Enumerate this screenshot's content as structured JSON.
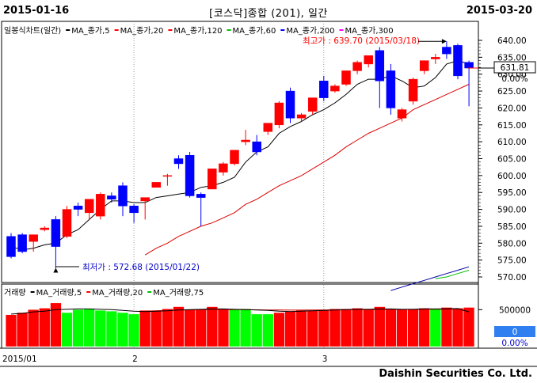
{
  "header": {
    "start_date": "2015-01-16",
    "end_date": "2015-03-20",
    "title": "[코스닥]종합 (201), 일간"
  },
  "footer": {
    "brand": "Daishin Securities Co. Ltd."
  },
  "price_legend": [
    {
      "label": "일봉식차트(일간)",
      "color": "#000000",
      "marker": false
    },
    {
      "label": "MA_종가,5",
      "color": "#000000",
      "marker": true
    },
    {
      "label": "MA_종가,20",
      "color": "#ff0000",
      "marker": true
    },
    {
      "label": "MA_종가,120",
      "color": "#ff0000",
      "marker": true
    },
    {
      "label": "MA_종가,60",
      "color": "#00c000",
      "marker": true
    },
    {
      "label": "MA_종가,200",
      "color": "#0000ff",
      "marker": true
    },
    {
      "label": "MA_종가,300",
      "color": "#ff00ff",
      "marker": true
    }
  ],
  "volume_legend": [
    {
      "label": "거래량",
      "color": "#ff0000"
    },
    {
      "label": "MA_거래량,5",
      "color": "#000000"
    },
    {
      "label": "MA_거래량,20",
      "color": "#ff0000"
    },
    {
      "label": "MA_거래량,75",
      "color": "#00c000"
    }
  ],
  "annotations": {
    "high": "최고가 : 639.70 (2015/03/18)",
    "low": "최저가 : 572.68 (2015/01/22)"
  },
  "current": {
    "price": "631.81",
    "change": "0.00%",
    "vol_value": "0",
    "vol_change": "0.00%"
  },
  "colors": {
    "up": "#ff0000",
    "down": "#0000ff",
    "volume_up": "#ff0000",
    "volume_other": "#00ff00"
  },
  "chart_data": [
    {
      "type": "candlestick",
      "y_ticks": [
        570,
        575,
        580,
        585,
        590,
        595,
        600,
        605,
        610,
        615,
        620,
        625,
        630,
        635,
        640
      ],
      "ylim": [
        568,
        642
      ],
      "x_labels": [
        {
          "label": "2015/01",
          "index": 0
        },
        {
          "label": "2",
          "index": 11
        },
        {
          "label": "3",
          "index": 28
        }
      ],
      "candles": [
        {
          "o": 582.0,
          "h": 583.0,
          "c": 576.0,
          "l": 575.5
        },
        {
          "o": 582.5,
          "h": 583.0,
          "c": 577.5,
          "l": 577.0
        },
        {
          "o": 580.5,
          "h": 582.5,
          "c": 582.5,
          "l": 577.5
        },
        {
          "o": 584.0,
          "h": 585.0,
          "c": 584.5,
          "l": 583.5
        },
        {
          "o": 587.0,
          "h": 588.0,
          "c": 579.0,
          "l": 572.7
        },
        {
          "o": 582.0,
          "h": 591.0,
          "c": 590.0,
          "l": 581.5
        },
        {
          "o": 591.0,
          "h": 592.0,
          "c": 590.0,
          "l": 588.0
        },
        {
          "o": 589.0,
          "h": 593.0,
          "c": 593.0,
          "l": 587.0
        },
        {
          "o": 588.0,
          "h": 595.0,
          "c": 594.5,
          "l": 587.0
        },
        {
          "o": 594.0,
          "h": 595.0,
          "c": 593.0,
          "l": 592.0
        },
        {
          "o": 597.0,
          "h": 598.0,
          "c": 591.0,
          "l": 588.0
        },
        {
          "o": 591.0,
          "h": 591.5,
          "c": 589.0,
          "l": 586.0
        },
        {
          "o": 592.5,
          "h": 593.5,
          "c": 593.5,
          "l": 587.0
        },
        {
          "o": 596.5,
          "h": 598.0,
          "c": 598.0,
          "l": 596.5
        },
        {
          "o": 600.0,
          "h": 600.5,
          "c": 600.0,
          "l": 597.0
        },
        {
          "o": 605.0,
          "h": 606.0,
          "c": 603.5,
          "l": 602.0
        },
        {
          "o": 606.0,
          "h": 607.0,
          "c": 594.0,
          "l": 593.5
        },
        {
          "o": 594.5,
          "h": 595.0,
          "c": 593.5,
          "l": 585.0
        },
        {
          "o": 596.0,
          "h": 602.0,
          "c": 602.0,
          "l": 596.0
        },
        {
          "o": 601.0,
          "h": 604.0,
          "c": 603.5,
          "l": 600.0
        },
        {
          "o": 603.5,
          "h": 607.5,
          "c": 607.5,
          "l": 603.0
        },
        {
          "o": 610.0,
          "h": 613.5,
          "c": 610.5,
          "l": 609.0
        },
        {
          "o": 610.0,
          "h": 612.0,
          "c": 607.0,
          "l": 606.0
        },
        {
          "o": 613.0,
          "h": 615.5,
          "c": 615.5,
          "l": 612.0
        },
        {
          "o": 615.0,
          "h": 622.0,
          "c": 621.5,
          "l": 614.0
        },
        {
          "o": 625.0,
          "h": 626.0,
          "c": 617.0,
          "l": 615.5
        },
        {
          "o": 617.0,
          "h": 618.5,
          "c": 618.0,
          "l": 616.0
        },
        {
          "o": 619.0,
          "h": 623.0,
          "c": 623.0,
          "l": 618.0
        },
        {
          "o": 628.0,
          "h": 629.5,
          "c": 623.0,
          "l": 622.0
        },
        {
          "o": 625.0,
          "h": 627.0,
          "c": 626.5,
          "l": 624.5
        },
        {
          "o": 627.0,
          "h": 631.0,
          "c": 631.0,
          "l": 626.5
        },
        {
          "o": 631.0,
          "h": 634.0,
          "c": 633.5,
          "l": 630.0
        },
        {
          "o": 633.0,
          "h": 635.5,
          "c": 635.5,
          "l": 632.0
        },
        {
          "o": 637.0,
          "h": 638.0,
          "c": 628.0,
          "l": 620.0
        },
        {
          "o": 631.0,
          "h": 633.0,
          "c": 620.0,
          "l": 618.0
        },
        {
          "o": 617.0,
          "h": 620.0,
          "c": 619.5,
          "l": 616.0
        },
        {
          "o": 622.0,
          "h": 629.0,
          "c": 628.5,
          "l": 621.0
        },
        {
          "o": 631.0,
          "h": 634.0,
          "c": 634.0,
          "l": 630.0
        },
        {
          "o": 634.5,
          "h": 636.0,
          "c": 635.0,
          "l": 633.0
        },
        {
          "o": 638.0,
          "h": 639.7,
          "c": 636.0,
          "l": 634.5
        },
        {
          "o": 638.5,
          "h": 639.0,
          "c": 629.5,
          "l": 628.5
        },
        {
          "o": 633.5,
          "h": 634.0,
          "c": 631.81,
          "l": 620.5
        }
      ],
      "ma_5": [
        579.0,
        578.0,
        578.5,
        579.5,
        580.0,
        582.5,
        584.0,
        587.0,
        590.0,
        592.5,
        592.5,
        592.0,
        592.0,
        593.5,
        594.0,
        594.5,
        595.0,
        596.5,
        597.0,
        598.0,
        599.5,
        604.0,
        607.0,
        608.5,
        612.5,
        614.5,
        616.0,
        618.0,
        619.5,
        621.5,
        624.0,
        627.0,
        628.5,
        628.5,
        629.5,
        628.0,
        626.0,
        626.5,
        629.0,
        633.0,
        634.0,
        633.0
      ],
      "ma_20": [
        null,
        null,
        null,
        null,
        null,
        null,
        null,
        null,
        null,
        null,
        null,
        null,
        576.5,
        578.5,
        580.0,
        582.0,
        583.5,
        585.0,
        586.0,
        587.5,
        589.0,
        591.5,
        593.0,
        595.0,
        597.0,
        598.5,
        600.0,
        602.0,
        604.0,
        606.0,
        608.5,
        610.5,
        612.5,
        614.0,
        615.5,
        617.0,
        619.5,
        621.0,
        622.5,
        624.0,
        625.5,
        627.0
      ],
      "ma_120": [
        null,
        null,
        null,
        null,
        null,
        null,
        null,
        null,
        null,
        null,
        null,
        null,
        null,
        null,
        null,
        null,
        null,
        null,
        null,
        null,
        null,
        null,
        null,
        null,
        null,
        null,
        null,
        null,
        null,
        null,
        null,
        null,
        null,
        null,
        566.0,
        567.0,
        568.0,
        569.0,
        570.0,
        571.0,
        572.0,
        573.0
      ],
      "ma_60": [
        null,
        null,
        null,
        null,
        null,
        null,
        null,
        null,
        null,
        null,
        null,
        null,
        null,
        null,
        null,
        null,
        null,
        null,
        null,
        null,
        null,
        null,
        null,
        null,
        null,
        null,
        null,
        null,
        null,
        null,
        null,
        null,
        null,
        null,
        null,
        null,
        null,
        null,
        569.5,
        570.0,
        571.0,
        572.0
      ],
      "volume_axis": {
        "label": "500000",
        "value": 500000
      },
      "volume_bars": [
        {
          "v": 430000,
          "c": "up"
        },
        {
          "v": 460000,
          "c": "up"
        },
        {
          "v": 500000,
          "c": "up"
        },
        {
          "v": 520000,
          "c": "up"
        },
        {
          "v": 590000,
          "c": "up"
        },
        {
          "v": 460000,
          "c": "other"
        },
        {
          "v": 500000,
          "c": "other"
        },
        {
          "v": 510000,
          "c": "other"
        },
        {
          "v": 490000,
          "c": "other"
        },
        {
          "v": 480000,
          "c": "other"
        },
        {
          "v": 460000,
          "c": "other"
        },
        {
          "v": 440000,
          "c": "other"
        },
        {
          "v": 490000,
          "c": "up"
        },
        {
          "v": 490000,
          "c": "up"
        },
        {
          "v": 510000,
          "c": "up"
        },
        {
          "v": 540000,
          "c": "up"
        },
        {
          "v": 500000,
          "c": "up"
        },
        {
          "v": 500000,
          "c": "up"
        },
        {
          "v": 540000,
          "c": "up"
        },
        {
          "v": 510000,
          "c": "up"
        },
        {
          "v": 500000,
          "c": "other"
        },
        {
          "v": 510000,
          "c": "other"
        },
        {
          "v": 440000,
          "c": "other"
        },
        {
          "v": 440000,
          "c": "other"
        },
        {
          "v": 460000,
          "c": "up"
        },
        {
          "v": 480000,
          "c": "up"
        },
        {
          "v": 490000,
          "c": "up"
        },
        {
          "v": 490000,
          "c": "up"
        },
        {
          "v": 500000,
          "c": "up"
        },
        {
          "v": 510000,
          "c": "up"
        },
        {
          "v": 510000,
          "c": "up"
        },
        {
          "v": 520000,
          "c": "up"
        },
        {
          "v": 510000,
          "c": "up"
        },
        {
          "v": 540000,
          "c": "up"
        },
        {
          "v": 500000,
          "c": "up"
        },
        {
          "v": 500000,
          "c": "up"
        },
        {
          "v": 510000,
          "c": "up"
        },
        {
          "v": 520000,
          "c": "up"
        },
        {
          "v": 510000,
          "c": "other"
        },
        {
          "v": 530000,
          "c": "up"
        },
        {
          "v": 520000,
          "c": "up"
        },
        {
          "v": 530000,
          "c": "up"
        }
      ],
      "volume_ma_5": [
        440000,
        450000,
        470000,
        480000,
        500000,
        505000,
        510000,
        510000,
        505000,
        500000,
        490000,
        480000,
        475000,
        480000,
        485000,
        495000,
        500000,
        505000,
        510000,
        510000,
        505000,
        500000,
        495000,
        490000,
        480000,
        475000,
        480000,
        485000,
        490000,
        495000,
        500000,
        505000,
        505000,
        510000,
        510000,
        505000,
        505000,
        510000,
        510000,
        512000,
        515000,
        470000
      ],
      "volume_ma_20": [
        null,
        null,
        null,
        null,
        null,
        null,
        null,
        null,
        null,
        null,
        null,
        null,
        480000,
        485000,
        490000,
        495000,
        495000,
        498000,
        500000,
        500000,
        500000,
        500000,
        498000,
        496000,
        495000,
        494000,
        494000,
        495000,
        496000,
        497000,
        498000,
        500000,
        500000,
        502000,
        503000,
        503000,
        504000,
        505000,
        506000,
        507000,
        508000,
        470000
      ]
    }
  ]
}
